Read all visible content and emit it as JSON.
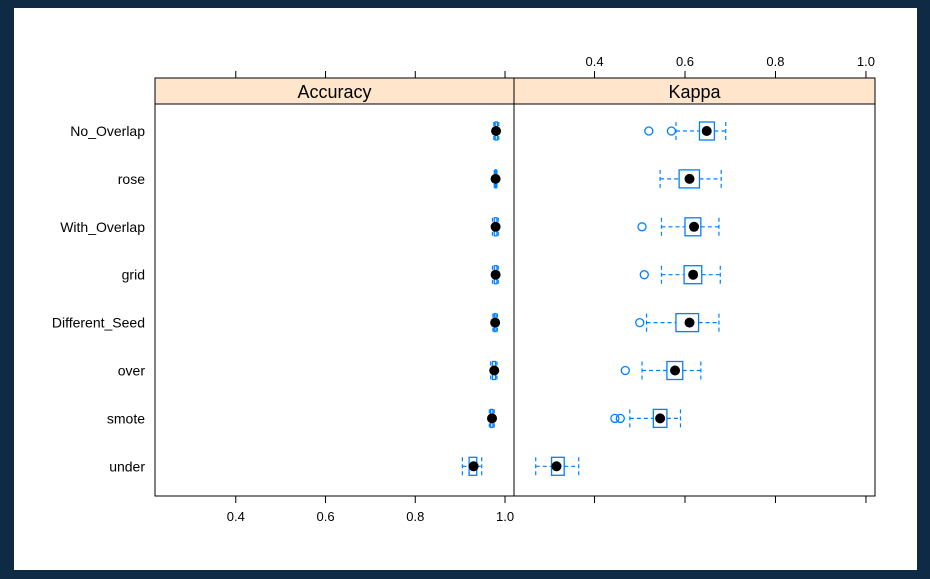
{
  "chart_data": {
    "type": "boxplot",
    "categories": [
      "No_Overlap",
      "rose",
      "With_Overlap",
      "grid",
      "Different_Seed",
      "over",
      "smote",
      "under"
    ],
    "panels": [
      {
        "name": "Accuracy",
        "xlim": [
          0.22,
          1.02
        ],
        "ticks": [
          "0.4",
          "0.6",
          "0.8",
          "1.0"
        ],
        "tick_values": [
          0.4,
          0.6,
          0.8,
          1.0
        ],
        "boxes": [
          {
            "category": "No_Overlap",
            "whisker_low": 0.975,
            "q1": 0.978,
            "median": 0.98,
            "q3": 0.983,
            "whisker_high": 0.986,
            "outliers": []
          },
          {
            "category": "rose",
            "whisker_low": 0.976,
            "q1": 0.978,
            "median": 0.979,
            "q3": 0.98,
            "whisker_high": 0.982,
            "outliers": []
          },
          {
            "category": "With_Overlap",
            "whisker_low": 0.972,
            "q1": 0.976,
            "median": 0.979,
            "q3": 0.982,
            "whisker_high": 0.985,
            "outliers": []
          },
          {
            "category": "grid",
            "whisker_low": 0.972,
            "q1": 0.976,
            "median": 0.979,
            "q3": 0.982,
            "whisker_high": 0.985,
            "outliers": []
          },
          {
            "category": "Different_Seed",
            "whisker_low": 0.973,
            "q1": 0.976,
            "median": 0.978,
            "q3": 0.98,
            "whisker_high": 0.983,
            "outliers": []
          },
          {
            "category": "over",
            "whisker_low": 0.968,
            "q1": 0.972,
            "median": 0.976,
            "q3": 0.979,
            "whisker_high": 0.982,
            "outliers": []
          },
          {
            "category": "smote",
            "whisker_low": 0.965,
            "q1": 0.968,
            "median": 0.971,
            "q3": 0.973,
            "whisker_high": 0.976,
            "outliers": []
          },
          {
            "category": "under",
            "whisker_low": 0.905,
            "q1": 0.92,
            "median": 0.93,
            "q3": 0.937,
            "whisker_high": 0.948,
            "outliers": []
          }
        ]
      },
      {
        "name": "Kappa",
        "xlim": [
          0.222,
          1.02
        ],
        "ticks": [
          "0.4",
          "0.6",
          "0.8",
          "1.0"
        ],
        "tick_values": [
          0.4,
          0.6,
          0.8,
          1.0
        ],
        "boxes": [
          {
            "category": "No_Overlap",
            "whisker_low": 0.58,
            "q1": 0.632,
            "median": 0.648,
            "q3": 0.665,
            "whisker_high": 0.69,
            "outliers": [
              0.52,
              0.57
            ]
          },
          {
            "category": "rose",
            "whisker_low": 0.545,
            "q1": 0.587,
            "median": 0.61,
            "q3": 0.632,
            "whisker_high": 0.68,
            "outliers": []
          },
          {
            "category": "With_Overlap",
            "whisker_low": 0.548,
            "q1": 0.6,
            "median": 0.62,
            "q3": 0.635,
            "whisker_high": 0.675,
            "outliers": [
              0.505
            ]
          },
          {
            "category": "grid",
            "whisker_low": 0.548,
            "q1": 0.598,
            "median": 0.618,
            "q3": 0.637,
            "whisker_high": 0.678,
            "outliers": [
              0.51
            ]
          },
          {
            "category": "Different_Seed",
            "whisker_low": 0.515,
            "q1": 0.58,
            "median": 0.61,
            "q3": 0.63,
            "whisker_high": 0.675,
            "outliers": [
              0.5
            ]
          },
          {
            "category": "over",
            "whisker_low": 0.505,
            "q1": 0.56,
            "median": 0.578,
            "q3": 0.595,
            "whisker_high": 0.635,
            "outliers": [
              0.468
            ]
          },
          {
            "category": "smote",
            "whisker_low": 0.478,
            "q1": 0.53,
            "median": 0.545,
            "q3": 0.56,
            "whisker_high": 0.59,
            "outliers": [
              0.445,
              0.457
            ]
          },
          {
            "category": "under",
            "whisker_low": 0.27,
            "q1": 0.305,
            "median": 0.316,
            "q3": 0.333,
            "whisker_high": 0.365,
            "outliers": []
          }
        ]
      }
    ],
    "colors": {
      "strip": "#ffe5cc",
      "box": "#0080ff",
      "median_dot": "#000000"
    },
    "legend": "none",
    "grid": false
  }
}
